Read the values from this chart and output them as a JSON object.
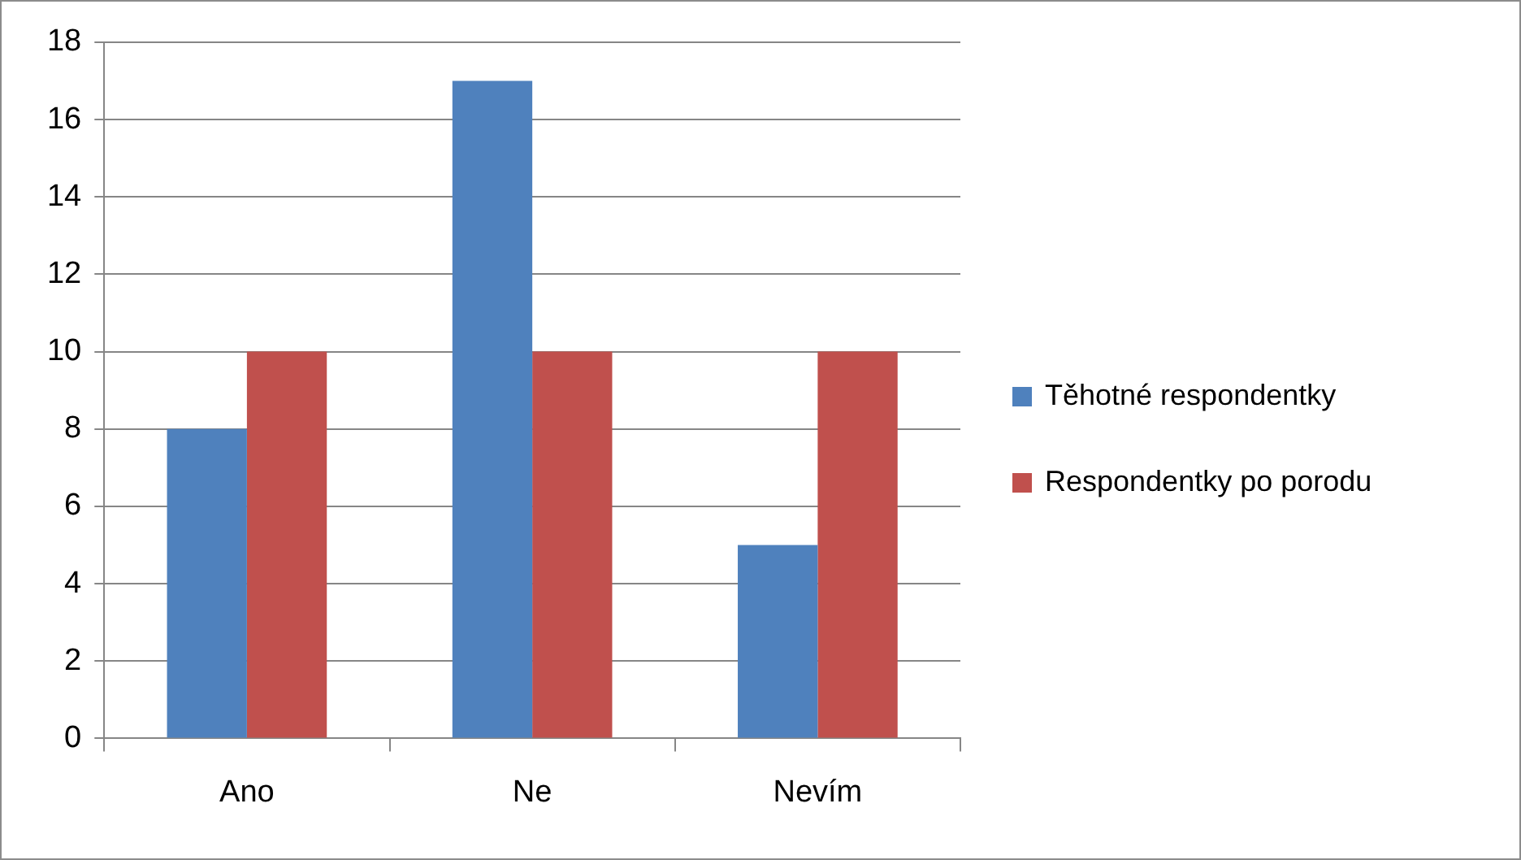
{
  "chart_data": {
    "type": "bar",
    "categories": [
      "Ano",
      "Ne",
      "Nevím"
    ],
    "series": [
      {
        "name": "Těhotné respondentky",
        "color": "#4f81bd",
        "values": [
          8,
          17,
          5
        ]
      },
      {
        "name": "Respondentky po porodu",
        "color": "#c0504d",
        "values": [
          10,
          10,
          10
        ]
      }
    ],
    "ylim": [
      0,
      18
    ],
    "yticks": [
      0,
      2,
      4,
      6,
      8,
      10,
      12,
      14,
      16,
      18
    ],
    "grid": "y",
    "legend": "right"
  }
}
